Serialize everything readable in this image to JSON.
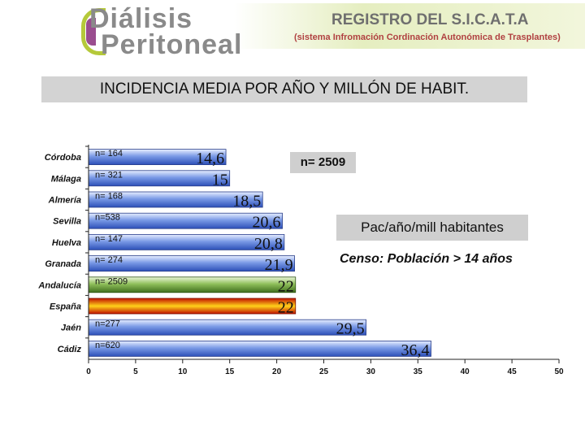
{
  "header": {
    "logo_line1": "Diálisis",
    "logo_line2": "Peritoneal",
    "registry_title": "REGISTRO DEL S.I.C.A.T.A",
    "registry_subtitle": "(sistema Infromación Cordinación Autonómica de Trasplantes)"
  },
  "banner": "INCIDENCIA MEDIA POR AÑO Y MILLÓN DE HABIT.",
  "annotations": {
    "n_total": "n= 2509",
    "unit": "Pac/año/mill habitantes",
    "census": "Censo: Población  > 14 años"
  },
  "colors": {
    "default_bar": "#4a6fd0",
    "andalucia_bar": "#5a8a2e",
    "espana_bar": "#e03010"
  },
  "chart_data": {
    "type": "bar",
    "orientation": "horizontal",
    "categories": [
      "Córdoba",
      "Málaga",
      "Almería",
      "Sevilla",
      "Huelva",
      "Granada",
      "Andalucía",
      "España",
      "Jaén",
      "Cádiz"
    ],
    "values": [
      14.6,
      15,
      18.5,
      20.6,
      20.8,
      21.9,
      22,
      22,
      29.5,
      36.4
    ],
    "value_labels": [
      "14,6",
      "15",
      "18,5",
      "20,6",
      "20,8",
      "21,9",
      "22",
      "22",
      "29,5",
      "36,4"
    ],
    "n_labels": [
      "n= 164",
      "n= 321",
      "n= 168",
      "n=538",
      "n= 147",
      "n= 274",
      "n= 2509",
      "",
      "n=277",
      "n=620"
    ],
    "xlim": [
      0,
      50
    ],
    "xticks": [
      0,
      5,
      10,
      15,
      20,
      25,
      30,
      35,
      40,
      45,
      50
    ],
    "legend": "none",
    "grid": false
  }
}
